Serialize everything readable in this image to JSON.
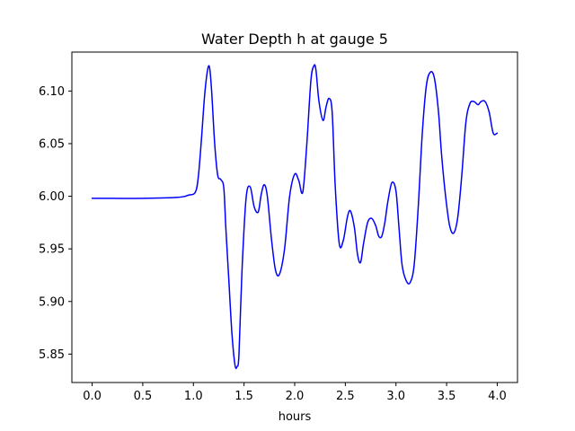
{
  "chart_data": {
    "type": "line",
    "title": "Water Depth h at gauge 5",
    "xlabel": "hours",
    "ylabel": "",
    "xlim": [
      -0.2,
      4.2
    ],
    "ylim": [
      5.823,
      6.137
    ],
    "xticks": [
      0.0,
      0.5,
      1.0,
      1.5,
      2.0,
      2.5,
      3.0,
      3.5,
      4.0
    ],
    "xtick_labels": [
      "0.0",
      "0.5",
      "1.0",
      "1.5",
      "2.0",
      "2.5",
      "3.0",
      "3.5",
      "4.0"
    ],
    "yticks": [
      5.85,
      5.9,
      5.95,
      6.0,
      6.05,
      6.1
    ],
    "ytick_labels": [
      "5.85",
      "5.90",
      "5.95",
      "6.00",
      "6.05",
      "6.10"
    ],
    "grid": false,
    "series": [
      {
        "name": "h",
        "color": "#0000ff",
        "x": [
          0.0,
          0.2,
          0.5,
          0.85,
          0.95,
          1.02,
          1.05,
          1.08,
          1.11,
          1.14,
          1.16,
          1.18,
          1.21,
          1.24,
          1.27,
          1.3,
          1.32,
          1.35,
          1.38,
          1.41,
          1.43,
          1.45,
          1.48,
          1.52,
          1.56,
          1.6,
          1.64,
          1.67,
          1.7,
          1.73,
          1.77,
          1.81,
          1.85,
          1.9,
          1.95,
          2.0,
          2.04,
          2.08,
          2.12,
          2.16,
          2.19,
          2.21,
          2.24,
          2.28,
          2.31,
          2.34,
          2.37,
          2.4,
          2.44,
          2.48,
          2.52,
          2.55,
          2.59,
          2.62,
          2.65,
          2.68,
          2.72,
          2.76,
          2.8,
          2.83,
          2.86,
          2.89,
          2.92,
          2.96,
          3.0,
          3.03,
          3.06,
          3.1,
          3.14,
          3.18,
          3.22,
          3.26,
          3.3,
          3.34,
          3.38,
          3.42,
          3.45,
          3.49,
          3.53,
          3.57,
          3.61,
          3.65,
          3.69,
          3.73,
          3.77,
          3.81,
          3.84,
          3.88,
          3.92,
          3.96,
          4.0
        ],
        "values": [
          5.998,
          5.998,
          5.998,
          5.999,
          6.001,
          6.004,
          6.02,
          6.055,
          6.095,
          6.12,
          6.122,
          6.1,
          6.05,
          6.02,
          6.016,
          6.008,
          5.97,
          5.92,
          5.87,
          5.84,
          5.838,
          5.85,
          5.93,
          5.998,
          6.009,
          5.99,
          5.985,
          6.002,
          6.011,
          6.0,
          5.96,
          5.93,
          5.926,
          5.95,
          6.0,
          6.021,
          6.015,
          6.004,
          6.05,
          6.11,
          6.124,
          6.12,
          6.09,
          6.072,
          6.085,
          6.093,
          6.08,
          6.01,
          5.955,
          5.958,
          5.98,
          5.986,
          5.97,
          5.945,
          5.937,
          5.955,
          5.975,
          5.979,
          5.972,
          5.962,
          5.962,
          5.975,
          5.995,
          6.013,
          6.005,
          5.97,
          5.935,
          5.92,
          5.918,
          5.935,
          5.99,
          6.06,
          6.105,
          6.118,
          6.112,
          6.08,
          6.04,
          6.0,
          5.972,
          5.965,
          5.98,
          6.02,
          6.07,
          6.088,
          6.09,
          6.087,
          6.09,
          6.09,
          6.08,
          6.06,
          6.06
        ]
      }
    ]
  }
}
